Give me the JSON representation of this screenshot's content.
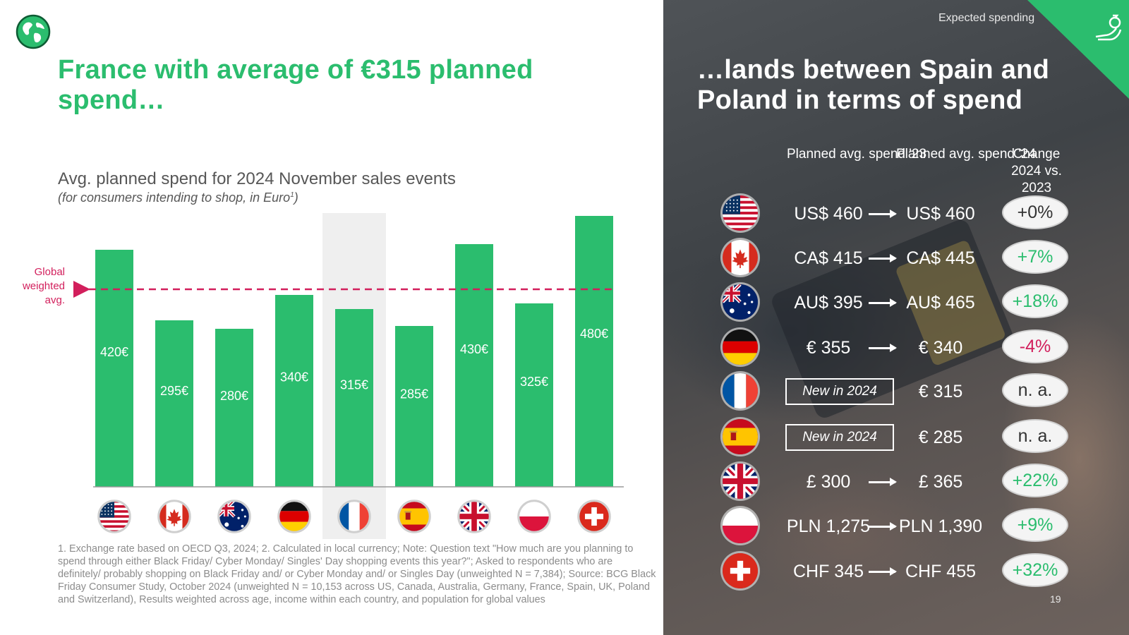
{
  "left": {
    "title": "France with average of €315 planned spend…",
    "chart_title": "Avg. planned spend for 2024 November sales events",
    "chart_subtitle": "(for consumers intending to shop, in Euro",
    "chart_subtitle_sup": "1",
    "chart_subtitle_end": ")",
    "footnote": "1. Exchange rate based on OECD Q3, 2024; 2. Calculated in local currency; Note: Question text \"How much are you planning to spend through either Black Friday/ Cyber Monday/ Singles' Day shopping events this year?\"; Asked to respondents who are definitely/ probably shopping on Black Friday and/ or Cyber Monday and/ or Singles Day (unweighted N = 7,384); Source: BCG Black Friday Consumer Study, October 2024 (unweighted N = 10,153 across US, Canada, Australia, Germany, France, Spain, UK, Poland and Switzerland), Results weighted across age, income within each country, and population for global values"
  },
  "chart_data": {
    "type": "bar",
    "title": "Avg. planned spend for 2024 November sales events",
    "categories": [
      "US",
      "Canada",
      "Australia",
      "Germany",
      "France",
      "Spain",
      "UK",
      "Poland",
      "Switzerland"
    ],
    "values": [
      420,
      295,
      280,
      340,
      315,
      285,
      430,
      325,
      480
    ],
    "value_labels": [
      "420€",
      "295€",
      "280€",
      "340€",
      "315€",
      "285€",
      "430€",
      "325€",
      "480€"
    ],
    "highlight": "France",
    "reference_line": {
      "label": "Global weighted avg.",
      "value": 350
    },
    "ylim": [
      0,
      500
    ],
    "bar_color": "#2bbd6e",
    "reference_color": "#d21f5c"
  },
  "right": {
    "tag": "Expected spending",
    "title": "…lands between Spain and Poland in terms of spend",
    "headers": {
      "col1": "Planned avg. spend '23",
      "col2": "Planned avg. spend '24",
      "col3": "Change 2024 vs. 2023"
    },
    "rows": [
      {
        "flag": "us",
        "v23": "US$ 460",
        "v24": "US$ 460",
        "change": "+0%",
        "color": "#333333",
        "new": false
      },
      {
        "flag": "ca",
        "v23": "CA$ 415",
        "v24": "CA$ 445",
        "change": "+7%",
        "color": "#2bbd6e",
        "new": false
      },
      {
        "flag": "au",
        "v23": "AU$ 395",
        "v24": "AU$ 465",
        "change": "+18%",
        "color": "#2bbd6e",
        "new": false
      },
      {
        "flag": "de",
        "v23": "€ 355",
        "v24": "€ 340",
        "change": "-4%",
        "color": "#d21f5c",
        "new": false
      },
      {
        "flag": "fr",
        "v23": "New in 2024",
        "v24": "€ 315",
        "change": "n. a.",
        "color": "#333333",
        "new": true
      },
      {
        "flag": "es",
        "v23": "New in 2024",
        "v24": "€ 285",
        "change": "n. a.",
        "color": "#333333",
        "new": true
      },
      {
        "flag": "uk",
        "v23": "£ 300",
        "v24": "£ 365",
        "change": "+22%",
        "color": "#2bbd6e",
        "new": false
      },
      {
        "flag": "pl",
        "v23": "PLN 1,275",
        "v24": "PLN 1,390",
        "change": "+9%",
        "color": "#2bbd6e",
        "new": false
      },
      {
        "flag": "ch",
        "v23": "CHF 345",
        "v24": "CHF 455",
        "change": "+32%",
        "color": "#2bbd6e",
        "new": false
      }
    ],
    "page_number": "19"
  }
}
